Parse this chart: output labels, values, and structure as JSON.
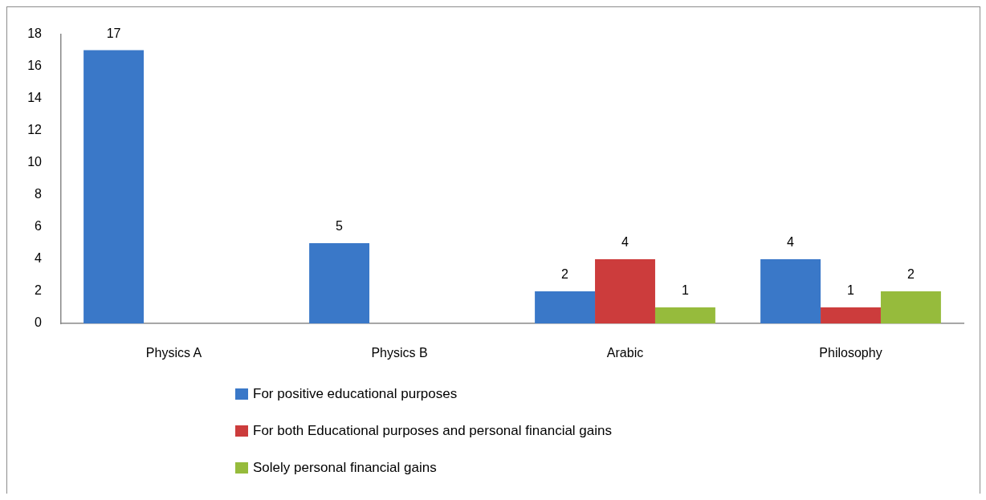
{
  "chart_data": {
    "type": "bar",
    "categories": [
      "Physics A",
      "Physics B",
      "Arabic",
      "Philosophy"
    ],
    "series": [
      {
        "name": "For positive educational purposes",
        "color": "#3a78c8",
        "values": [
          17,
          5,
          2,
          4
        ]
      },
      {
        "name": "For both Educational purposes and personal financial gains",
        "color": "#cc3c3c",
        "values": [
          null,
          null,
          4,
          1
        ]
      },
      {
        "name": "Solely personal financial gains",
        "color": "#96bb3c",
        "values": [
          null,
          null,
          1,
          2
        ]
      }
    ],
    "ylim": [
      0,
      18
    ],
    "yticks": [
      0,
      2,
      4,
      6,
      8,
      10,
      12,
      14,
      16,
      18
    ],
    "data_labels": true,
    "legend": "bottom",
    "grid": false
  }
}
